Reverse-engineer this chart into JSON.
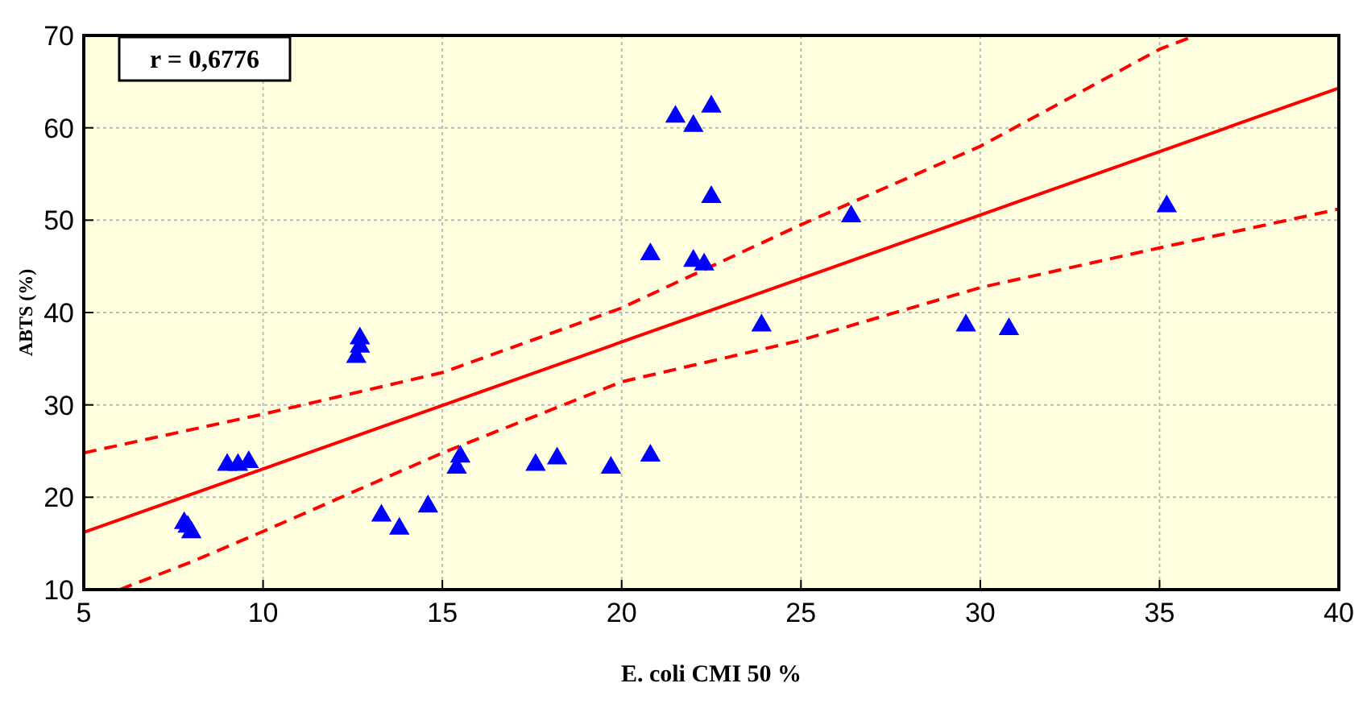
{
  "chart_data": {
    "type": "scatter",
    "xlabel": "E. coli CMI 50 %",
    "ylabel": "ABTS (%)",
    "annotations": [
      "r = 0,6776"
    ],
    "xlim": [
      5,
      40
    ],
    "ylim": [
      10,
      70
    ],
    "xticks": [
      5,
      10,
      15,
      20,
      25,
      30,
      35,
      40
    ],
    "yticks": [
      10,
      20,
      30,
      40,
      50,
      60,
      70
    ],
    "grid": true,
    "series": [
      {
        "color": "#0000ff",
        "marker": "triangle",
        "x": [
          7.8,
          7.9,
          8.0,
          9.0,
          9.3,
          9.6,
          12.6,
          12.7,
          12.7,
          13.3,
          13.8,
          14.6,
          15.4,
          15.5,
          17.6,
          18.2,
          19.7,
          20.8,
          20.8,
          21.5,
          22.0,
          22.0,
          22.3,
          22.5,
          22.5,
          23.9,
          26.4,
          29.6,
          30.8,
          35.2
        ],
        "values": [
          17.2,
          16.8,
          16.2,
          23.5,
          23.5,
          23.8,
          35.2,
          36.3,
          37.2,
          18,
          16.6,
          19,
          23.2,
          24.4,
          23.5,
          24.2,
          23.2,
          24.5,
          46.3,
          61.2,
          60.2,
          45.6,
          45.2,
          62.3,
          52.5,
          38.6,
          50.4,
          38.6,
          38.2,
          51.5
        ]
      },
      {
        "type": "line",
        "color": "#ff0000",
        "line_style": "solid",
        "x": [
          5,
          40
        ],
        "values": [
          16.2,
          64.3
        ]
      },
      {
        "type": "line",
        "color": "#ff0000",
        "line_style": "dashed",
        "x": [
          5,
          10,
          15,
          20,
          22.5,
          25,
          30,
          35,
          36
        ],
        "values": [
          24.8,
          29,
          33.5,
          40.5,
          45,
          49.5,
          58,
          68.5,
          70
        ]
      },
      {
        "type": "line",
        "color": "#ff0000",
        "line_style": "dashed",
        "x": [
          6,
          8,
          10,
          15,
          20,
          25,
          30,
          35,
          40
        ],
        "values": [
          10,
          13,
          16.3,
          24.8,
          32.5,
          37,
          42.7,
          47,
          51.2
        ]
      }
    ]
  }
}
